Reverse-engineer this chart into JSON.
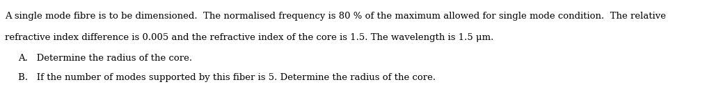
{
  "background_color": "#ffffff",
  "text_color": "#000000",
  "line1": "A single mode fibre is to be dimensioned.  The normalised frequency is 80 % of the maximum allowed for single mode condition.  The relative",
  "line2": "refractive index difference is 0.005 and the refractive index of the core is 1.5. The wavelength is 1.5 μm.",
  "item_A": "A.   Determine the radius of the core.",
  "item_B": "B.   If the number of modes supported by this fiber is 5. Determine the radius of the core.",
  "font_size": 9.5,
  "fig_width": 10.39,
  "fig_height": 1.45,
  "dpi": 100
}
